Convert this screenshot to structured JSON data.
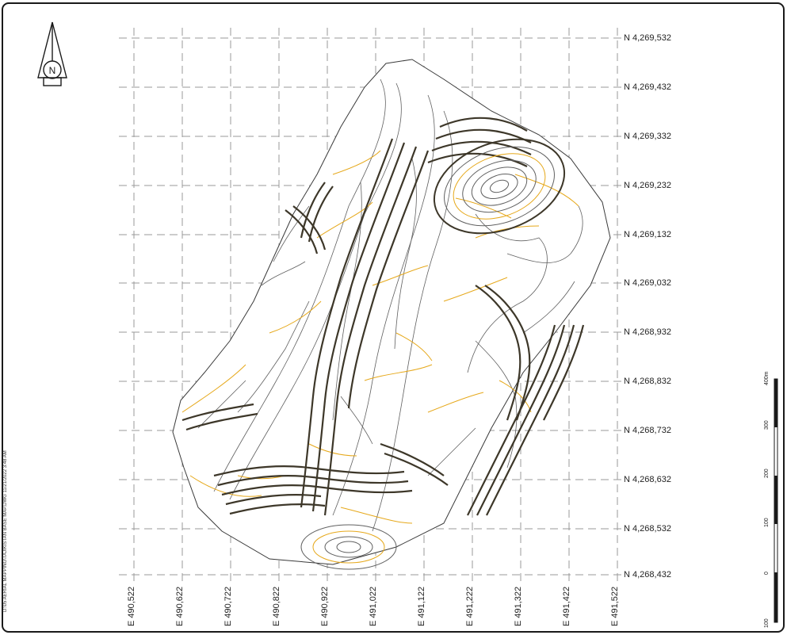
{
  "map": {
    "northings": [
      "N 4,269,532",
      "N 4,269,432",
      "N 4,269,332",
      "N 4,269,232",
      "N 4,269,132",
      "N 4,269,032",
      "N 4,268,932",
      "N 4,268,832",
      "N 4,268,732",
      "N 4,268,632",
      "N 4,268,532",
      "N 4,268,432"
    ],
    "eastings": [
      "E 490,522",
      "E 490,622",
      "E 490,722",
      "E 490,822",
      "E 490,922",
      "E 491,022",
      "E 491,122",
      "E 491,222",
      "E 491,322",
      "E 491,422",
      "E 491,522"
    ],
    "north_arrow_letter": "N",
    "scale_ticks": [
      "100",
      "0",
      "100",
      "200",
      "300",
      "400m"
    ],
    "file_path": "D:\\05 AERIAL MAPPING\\TAJIKISTAN BASE MAP.DWG     11/21/2022 3:48 AM"
  },
  "colors": {
    "contour_dark": "#3d3729",
    "contour_gray": "#606060",
    "contour_yellow": "#e6a81a",
    "grid": "#9a9a9a",
    "frame": "#1a1a1a"
  }
}
